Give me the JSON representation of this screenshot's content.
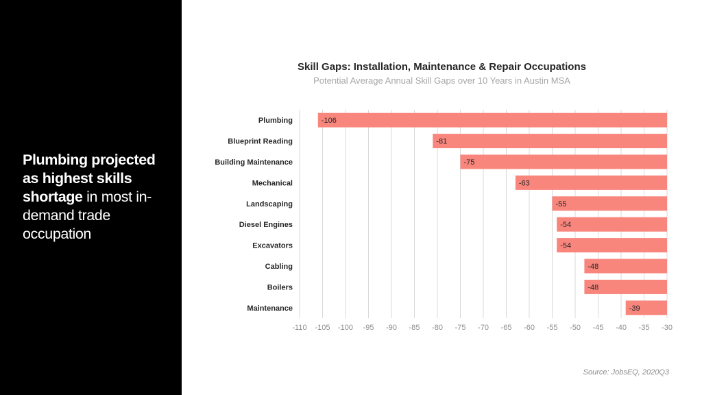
{
  "headline": {
    "part1": "Plumbing projected as highest skills shortage",
    "part2": " in most in-demand trade occupation"
  },
  "source": "Source: JobsEQ, 2020Q3",
  "colors": {
    "bar": "#f8867d",
    "grid": "#d9d9d9",
    "label": "#262626",
    "tick": "#8c8c8c"
  },
  "chart_data": {
    "type": "bar",
    "orientation": "horizontal",
    "title": "Skill Gaps: Installation, Maintenance  & Repair Occupations",
    "subtitle": "Potential Average Annual Skill Gaps over 10 Years in Austin MSA",
    "categories": [
      "Plumbing",
      "Blueprint Reading",
      "Building Maintenance",
      "Mechanical",
      "Landscaping",
      "Diesel Engines",
      "Excavators",
      "Cabling",
      "Boilers",
      "Maintenance"
    ],
    "values": [
      -106,
      -81,
      -75,
      -63,
      -55,
      -54,
      -54,
      -48,
      -48,
      -39
    ],
    "xlim": [
      -110,
      -30
    ],
    "xticks": [
      -110,
      -105,
      -100,
      -95,
      -90,
      -85,
      -80,
      -75,
      -70,
      -65,
      -60,
      -55,
      -50,
      -45,
      -40,
      -35,
      -30
    ],
    "grid": true,
    "data_labels": true
  }
}
